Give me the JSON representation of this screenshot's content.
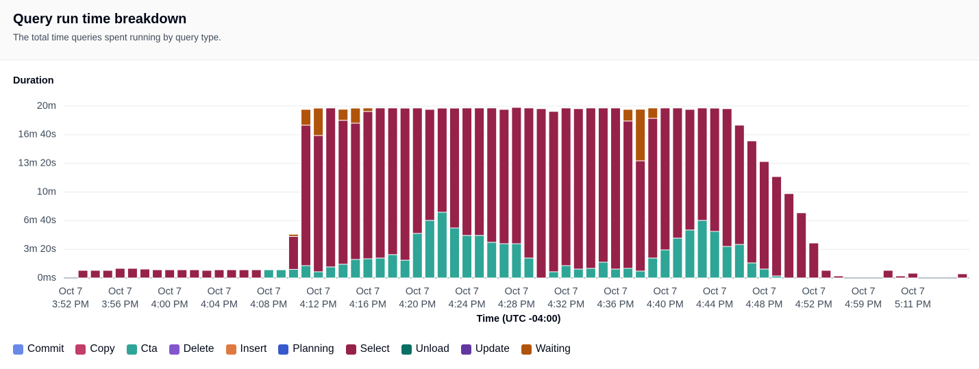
{
  "header": {
    "title": "Query run time breakdown",
    "subtitle": "The total time queries spent running by query type."
  },
  "chart_data": {
    "type": "bar",
    "stacked": true,
    "y_label": "Duration",
    "x_label": "Time (UTC -04:00)",
    "grid": true,
    "ylim": [
      0,
      1200
    ],
    "yticks": [
      {
        "value": 0,
        "label": "0ms"
      },
      {
        "value": 200,
        "label": "3m 20s"
      },
      {
        "value": 400,
        "label": "6m 40s"
      },
      {
        "value": 600,
        "label": "10m"
      },
      {
        "value": 800,
        "label": "13m 20s"
      },
      {
        "value": 1000,
        "label": "16m 40s"
      },
      {
        "value": 1200,
        "label": "20m"
      }
    ],
    "categories": [
      "Oct 7\n3:52 PM",
      null,
      null,
      null,
      "Oct 7\n3:56 PM",
      null,
      null,
      null,
      "Oct 7\n4:00 PM",
      null,
      null,
      null,
      "Oct 7\n4:04 PM",
      null,
      null,
      null,
      "Oct 7\n4:08 PM",
      null,
      null,
      null,
      "Oct 7\n4:12 PM",
      null,
      null,
      null,
      "Oct 7\n4:16 PM",
      null,
      null,
      null,
      "Oct 7\n4:20 PM",
      null,
      null,
      null,
      "Oct 7\n4:24 PM",
      null,
      null,
      null,
      "Oct 7\n4:28 PM",
      null,
      null,
      null,
      "Oct 7\n4:32 PM",
      null,
      null,
      null,
      "Oct 7\n4:36 PM",
      null,
      null,
      null,
      "Oct 7\n4:40 PM",
      null,
      null,
      null,
      "Oct 7\n4:44 PM",
      null,
      null,
      null,
      "Oct 7\n4:48 PM",
      null,
      null,
      null,
      "Oct 7\n4:52 PM",
      null,
      null,
      null,
      "Oct 7\n4:59 PM",
      null,
      null,
      null,
      "Oct 7\n5:11 PM",
      null,
      null,
      null,
      null
    ],
    "series": [
      {
        "name": "Commit",
        "color": "#688ae8",
        "values": [
          0,
          0,
          0,
          0,
          0,
          0,
          0,
          0,
          0,
          0,
          0,
          0,
          0,
          0,
          0,
          0,
          0,
          0,
          0,
          0,
          0,
          0,
          0,
          0,
          0,
          0,
          0,
          0,
          0,
          0,
          0,
          0,
          0,
          0,
          0,
          0,
          0,
          0,
          0,
          0,
          0,
          0,
          0,
          0,
          0,
          0,
          0,
          0,
          0,
          0,
          0,
          0,
          0,
          0,
          0,
          0,
          0,
          0,
          0,
          0,
          0,
          0,
          0,
          0,
          0,
          0,
          0,
          0,
          0,
          0,
          0,
          0,
          0
        ]
      },
      {
        "name": "Copy",
        "color": "#c33d69",
        "values": [
          0,
          0,
          0,
          0,
          0,
          0,
          0,
          0,
          0,
          0,
          0,
          0,
          0,
          0,
          0,
          0,
          0,
          0,
          0,
          0,
          0,
          0,
          0,
          0,
          0,
          0,
          0,
          0,
          0,
          0,
          0,
          0,
          0,
          0,
          0,
          0,
          0,
          0,
          0,
          0,
          0,
          0,
          0,
          0,
          0,
          0,
          0,
          0,
          0,
          0,
          0,
          0,
          0,
          0,
          0,
          0,
          0,
          0,
          0,
          0,
          0,
          0,
          0,
          0,
          0,
          0,
          0,
          0,
          0,
          0,
          0,
          0,
          0
        ]
      },
      {
        "name": "Cta",
        "color": "#2ea597",
        "values": [
          0,
          0,
          0,
          0,
          0,
          0,
          0,
          0,
          0,
          0,
          0,
          0,
          0,
          0,
          0,
          0,
          57,
          57,
          60,
          86,
          43,
          77,
          96,
          129,
          134,
          139,
          163,
          124,
          311,
          402,
          459,
          349,
          297,
          297,
          249,
          239,
          239,
          139,
          0,
          43,
          86,
          62,
          67,
          110,
          62,
          67,
          48,
          139,
          196,
          278,
          335,
          402,
          325,
          220,
          234,
          105,
          62,
          14,
          0,
          0,
          0,
          0,
          0,
          0,
          0,
          0,
          0,
          0,
          0,
          0,
          0,
          0,
          0
        ]
      },
      {
        "name": "Delete",
        "color": "#8456ce",
        "values": [
          0,
          0,
          0,
          0,
          0,
          0,
          0,
          0,
          0,
          0,
          0,
          0,
          0,
          0,
          0,
          0,
          0,
          0,
          0,
          0,
          0,
          0,
          0,
          0,
          0,
          0,
          0,
          0,
          0,
          0,
          0,
          0,
          0,
          0,
          0,
          0,
          0,
          0,
          0,
          0,
          0,
          0,
          0,
          0,
          0,
          0,
          0,
          0,
          0,
          0,
          0,
          0,
          0,
          0,
          0,
          0,
          0,
          0,
          0,
          0,
          0,
          0,
          0,
          0,
          0,
          0,
          0,
          0,
          0,
          0,
          0,
          0,
          0
        ]
      },
      {
        "name": "Insert",
        "color": "#e07941",
        "values": [
          0,
          0,
          0,
          0,
          0,
          0,
          0,
          0,
          0,
          0,
          0,
          0,
          0,
          0,
          0,
          0,
          0,
          0,
          0,
          0,
          0,
          0,
          0,
          0,
          0,
          0,
          0,
          0,
          0,
          0,
          0,
          0,
          0,
          0,
          0,
          0,
          0,
          0,
          0,
          0,
          0,
          0,
          0,
          0,
          0,
          0,
          0,
          0,
          0,
          0,
          0,
          0,
          0,
          0,
          0,
          0,
          0,
          0,
          0,
          0,
          0,
          0,
          0,
          0,
          0,
          0,
          0,
          0,
          0,
          0,
          0,
          0,
          0
        ]
      },
      {
        "name": "Planning",
        "color": "#3759ce",
        "values": [
          0,
          0,
          0,
          0,
          0,
          0,
          0,
          0,
          0,
          0,
          0,
          0,
          0,
          0,
          0,
          0,
          0,
          0,
          0,
          0,
          0,
          0,
          0,
          0,
          0,
          0,
          0,
          0,
          0,
          0,
          0,
          0,
          0,
          0,
          0,
          0,
          0,
          0,
          0,
          0,
          0,
          0,
          0,
          0,
          0,
          0,
          0,
          0,
          0,
          0,
          0,
          0,
          0,
          0,
          0,
          0,
          0,
          0,
          0,
          0,
          0,
          0,
          0,
          0,
          0,
          0,
          0,
          0,
          0,
          0,
          0,
          0,
          0
        ]
      },
      {
        "name": "Select",
        "color": "#962249",
        "values": [
          0,
          53,
          53,
          53,
          67,
          67,
          62,
          57,
          57,
          57,
          57,
          53,
          57,
          57,
          57,
          57,
          0,
          0,
          230,
          981,
          952,
          1110,
          1005,
          952,
          1029,
          1048,
          1024,
          1062,
          876,
          775,
          727,
          837,
          890,
          890,
          938,
          938,
          952,
          1048,
          1182,
          1120,
          1101,
          1120,
          1120,
          1077,
          1125,
          1029,
          770,
          976,
          991,
          909,
          842,
          785,
          861,
          962,
          833,
          852,
          751,
          694,
          589,
          455,
          244,
          53,
          14,
          0,
          0,
          0,
          53,
          14,
          33,
          0,
          0,
          0,
          29
        ]
      },
      {
        "name": "Unload",
        "color": "#096f64",
        "values": [
          0,
          0,
          0,
          0,
          0,
          0,
          0,
          0,
          0,
          0,
          0,
          0,
          0,
          0,
          0,
          0,
          0,
          0,
          0,
          0,
          0,
          0,
          0,
          0,
          0,
          0,
          0,
          0,
          0,
          0,
          0,
          0,
          0,
          0,
          0,
          0,
          0,
          0,
          0,
          0,
          0,
          0,
          0,
          0,
          0,
          0,
          0,
          0,
          0,
          0,
          0,
          0,
          0,
          0,
          0,
          0,
          0,
          0,
          0,
          0,
          0,
          0,
          0,
          0,
          0,
          0,
          0,
          0,
          0,
          0,
          0,
          0,
          0
        ]
      },
      {
        "name": "Update",
        "color": "#6237a0",
        "values": [
          0,
          0,
          0,
          0,
          0,
          0,
          0,
          0,
          0,
          0,
          0,
          0,
          0,
          0,
          0,
          0,
          0,
          0,
          0,
          0,
          0,
          0,
          0,
          0,
          0,
          0,
          0,
          0,
          0,
          0,
          0,
          0,
          0,
          0,
          0,
          0,
          0,
          0,
          0,
          0,
          0,
          0,
          0,
          0,
          0,
          0,
          0,
          0,
          0,
          0,
          0,
          0,
          0,
          0,
          0,
          0,
          0,
          0,
          0,
          0,
          0,
          0,
          0,
          0,
          0,
          0,
          0,
          0,
          0,
          0,
          0,
          0,
          0
        ]
      },
      {
        "name": "Waiting",
        "color": "#b1540b",
        "values": [
          0,
          0,
          0,
          0,
          0,
          0,
          0,
          0,
          0,
          0,
          0,
          0,
          0,
          0,
          0,
          0,
          0,
          0,
          15,
          110,
          191,
          0,
          77,
          105,
          24,
          0,
          0,
          0,
          0,
          0,
          0,
          0,
          0,
          0,
          0,
          0,
          0,
          0,
          0,
          0,
          0,
          0,
          0,
          0,
          0,
          81,
          360,
          72,
          0,
          0,
          0,
          0,
          0,
          0,
          0,
          0,
          0,
          0,
          0,
          0,
          0,
          0,
          0,
          0,
          0,
          0,
          0,
          0,
          0,
          0,
          0,
          0,
          0
        ]
      }
    ]
  }
}
